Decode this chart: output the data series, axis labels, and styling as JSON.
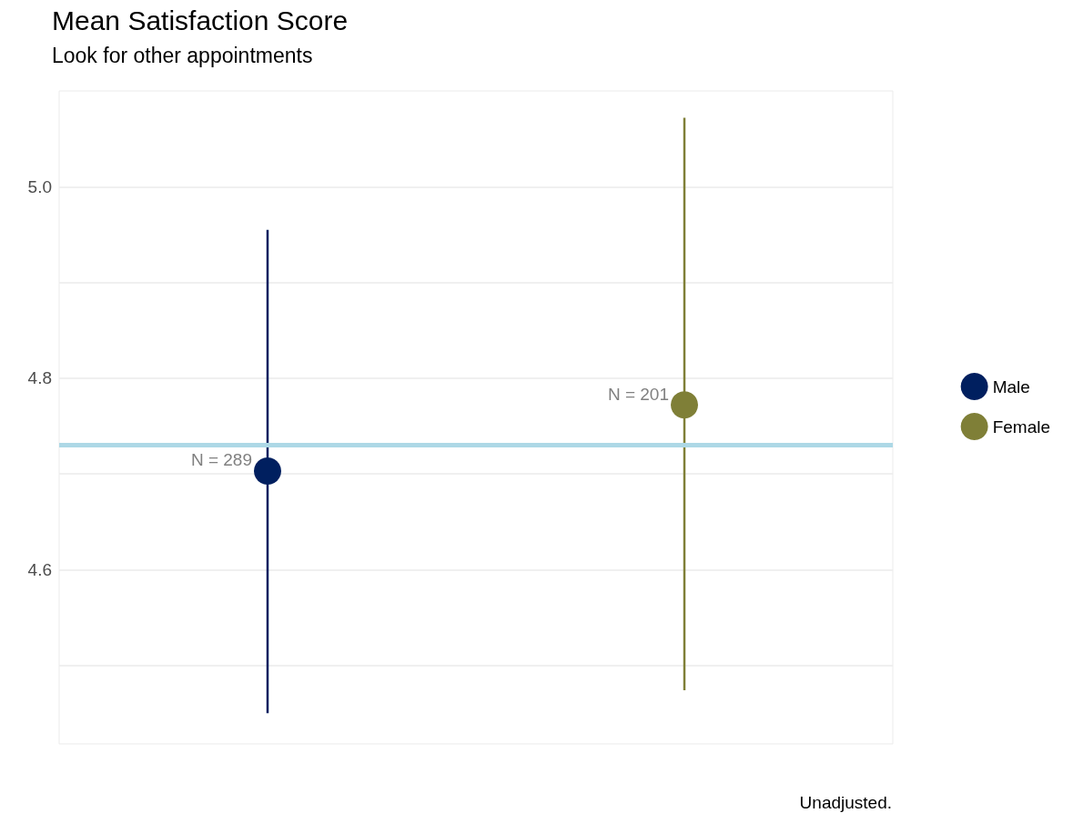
{
  "chart_data": {
    "type": "scatter",
    "title": "Mean Satisfaction Score",
    "subtitle": "Look for other appointments",
    "categories": [
      null,
      null
    ],
    "series": [
      {
        "name": "Male",
        "color": "#001f5f",
        "values": [
          4.703,
          null
        ],
        "errors": [
          [
            4.45,
            4.955
          ],
          null
        ]
      },
      {
        "name": "Female",
        "color": "#7f7f37",
        "values": [
          null,
          4.772
        ],
        "errors": [
          null,
          [
            4.474,
            5.072
          ]
        ]
      }
    ],
    "ylim": [
      4.418,
      5.1
    ],
    "yticks": [
      {
        "value": 4.5,
        "label": null
      },
      4.6,
      {
        "value": 4.7,
        "label": null
      },
      4.8,
      {
        "value": 4.9,
        "label": null
      },
      {
        "value": 5.0,
        "label": "5.0"
      }
    ],
    "ref_lines": [
      {
        "axis": "y",
        "value": 4.731,
        "color": "#add8e6"
      }
    ],
    "annotations": [
      "N = 289",
      "N = 201",
      "Unadjusted."
    ],
    "grid": "y",
    "legend": "right",
    "marker": "circle"
  }
}
